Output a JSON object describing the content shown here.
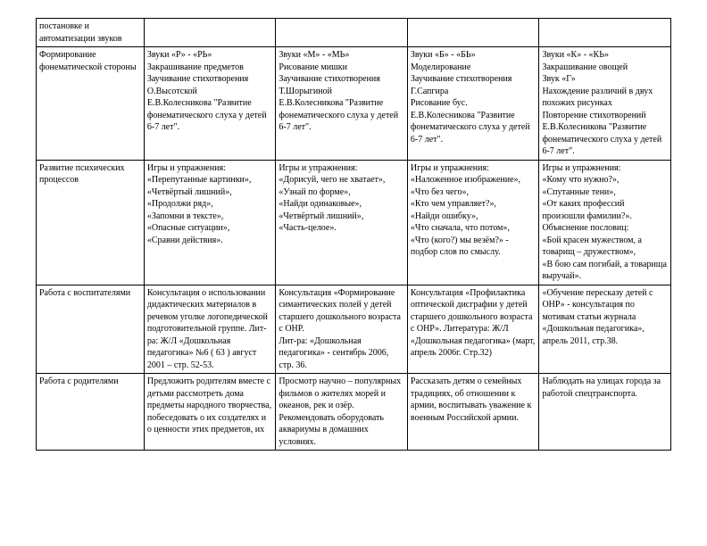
{
  "table": {
    "columns": [
      {
        "class": "col-label"
      },
      {
        "class": "col-data"
      },
      {
        "class": "col-data"
      },
      {
        "class": "col-data"
      },
      {
        "class": "col-data"
      }
    ],
    "rows": [
      {
        "label": "постановке и автоматизации звуков",
        "c1": "",
        "c2": "",
        "c3": "",
        "c4": ""
      },
      {
        "label": "Формирование фонематической стороны",
        "c1": "Звуки «Р» - «РЬ»\nЗакрашивание предметов\nЗаучивание стихотворения О.Высотской\nЕ.В.Колесникова \"Развитие фонематического слуха у детей 6-7 лет\".",
        "c2": "Звуки «М» - «МЬ»\nРисование мишки\nЗаучивание стихотворения Т.Шорыгиной\nЕ.В.Колесникова \"Развитие фонематического слуха у детей 6-7 лет\".",
        "c3": "Звуки «Б» - «БЬ»\nМоделирование\nЗаучивание стихотворения Г.Сапгира\nРисование бус.\nЕ.В.Колесникова \"Развитие фонематического слуха у детей 6-7 лет\".",
        "c4": "Звуки «К» - «КЬ»\nЗакрашивание овощей\nЗвук «Г»\nНахождение различий в двух похожих рисунках\nПовторение стихотворений\nЕ.В.Колесникова \"Развитие фонематического слуха у детей 6-7 лет\"."
      },
      {
        "label": "Развитие психических процессов",
        "c1": "Игры и упражнения:\n«Перепутанные картинки»,\n«Четвёртый лишний»,\n«Продолжи ряд»,\n«Запомни в тексте»,\n«Опасные ситуации»,\n«Сравни действия».",
        "c2": "Игры и упражнения:\n«Дорисуй, чего не хватает»,\n«Узнай по форме»,\n«Найди одинаковые»,\n«Четвёртый лишний»,\n«Часть-целое».",
        "c3": "Игры и упражнения:\n«Наложенное изображение»,\n«Что без чего»,\n«Кто чем управляет?»,\n«Найди ошибку»,\n«Что сначала, что потом»,\n«Что (кого?) мы везём?» - подбор слов по смыслу.",
        "c4": "Игры и упражнения:\n«Кому что нужно?»,\n«Спутанные тени»,\n«От каких профессий произошли фамилии?».\nОбъяснение пословиц:\n«Бой красен мужеством, а товарищ – дружеством»,\n«В бою сам погибай, а товарища выручай»."
      },
      {
        "label": "Работа с воспитателями",
        "c1": "Консультация о использовании дидактических материалов в речевом уголке логопедической подготовительной группе. Лит-ра: Ж/Л «Дошкольная педагогика» №6 ( 63 ) август 2001 – стр. 52-53.",
        "c2": "Консультация «Формирование симантических полей у детей старшего дошкольного возраста с ОНР.\nЛит-ра: «Дошкольная педагогика» - сентябрь 2006, стр. 36.",
        "c3": "Консультация «Профилактика оптической дисграфии у детей старшего дошкольного возраста с ОНР». Литература: Ж/Л «Дошкольная педагогика» (март, апрель 2006г. Стр.32)",
        "c4": "«Обучение пересказу детей с ОНР» - консультация по мотивам статьи журнала «Дошкольная педагогика», апрель 2011, стр.38."
      },
      {
        "label": "Работа с родителями",
        "c1": "Предложить родителям вместе с детьми рассмотреть дома предметы народного творчества, побеседовать о их создателях и о ценности этих предметов, их",
        "c2": "Просмотр научно – популярных фильмов о жителях морей и океанов, рек и озёр.\nРекомендовать оборудовать аквариумы в домашних условиях.",
        "c3": "Рассказать детям о семейных традициях, об отношении к армии, воспитывать уважение к военным Российской армии.",
        "c4": "Наблюдать на улицах города за работой спецтранспорта."
      }
    ]
  },
  "style": {
    "font_family": "Times New Roman, serif",
    "font_size_pt": 10,
    "text_color": "#000000",
    "background_color": "#ffffff",
    "border_color": "#000000",
    "line_height": 1.35
  }
}
